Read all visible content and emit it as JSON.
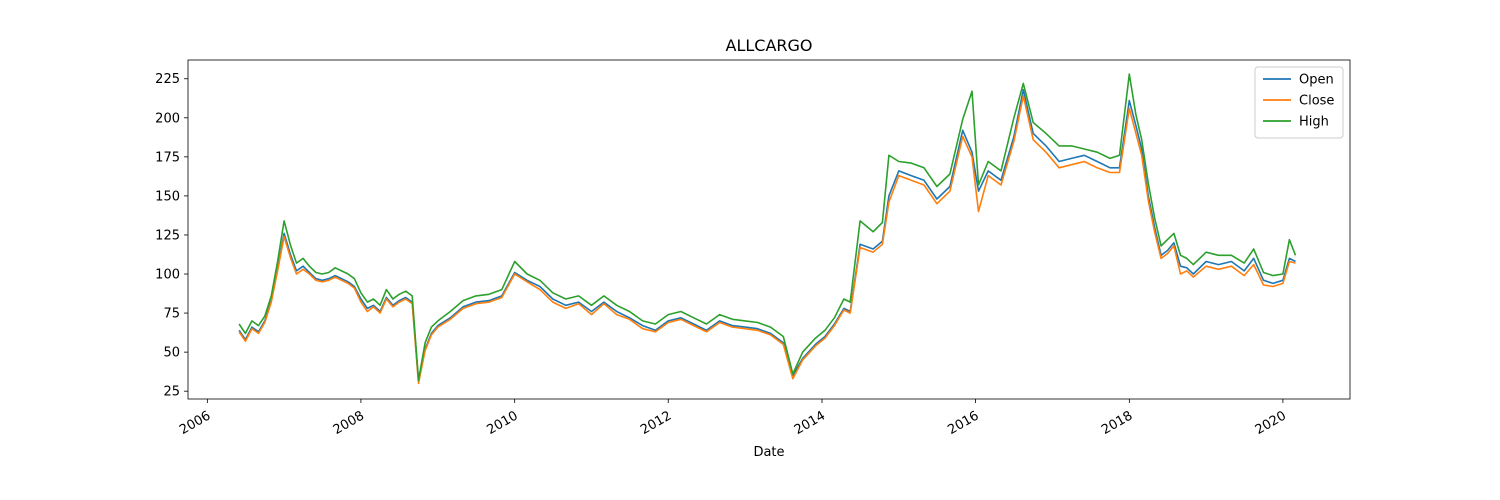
{
  "chart_data": {
    "type": "line",
    "title": "ALLCARGO",
    "xlabel": "Date",
    "ylabel": "",
    "xlim": [
      "2005-10-01",
      "2020-11-15"
    ],
    "ylim": [
      20,
      237
    ],
    "x_ticks": [
      "2006",
      "2008",
      "2010",
      "2012",
      "2014",
      "2016",
      "2018",
      "2020"
    ],
    "y_ticks": [
      25,
      50,
      75,
      100,
      125,
      150,
      175,
      200,
      225
    ],
    "grid": false,
    "legend_position": "top-right",
    "x": [
      "2006-06-01",
      "2006-07-01",
      "2006-08-01",
      "2006-09-01",
      "2006-10-01",
      "2006-11-01",
      "2006-12-01",
      "2007-01-01",
      "2007-02-01",
      "2007-03-01",
      "2007-04-01",
      "2007-05-01",
      "2007-06-01",
      "2007-07-01",
      "2007-08-01",
      "2007-09-01",
      "2007-10-01",
      "2007-11-01",
      "2007-12-01",
      "2008-01-01",
      "2008-02-01",
      "2008-03-01",
      "2008-04-01",
      "2008-05-01",
      "2008-06-01",
      "2008-07-01",
      "2008-08-01",
      "2008-09-01",
      "2008-10-01",
      "2008-11-01",
      "2008-12-01",
      "2009-01-01",
      "2009-03-01",
      "2009-05-01",
      "2009-07-01",
      "2009-09-01",
      "2009-11-01",
      "2010-01-01",
      "2010-03-01",
      "2010-05-01",
      "2010-07-01",
      "2010-09-01",
      "2010-11-01",
      "2011-01-01",
      "2011-03-01",
      "2011-05-01",
      "2011-07-01",
      "2011-09-01",
      "2011-11-01",
      "2012-01-01",
      "2012-03-01",
      "2012-05-01",
      "2012-07-01",
      "2012-09-01",
      "2012-11-01",
      "2013-01-01",
      "2013-03-01",
      "2013-05-01",
      "2013-07-01",
      "2013-08-15",
      "2013-10-01",
      "2013-12-01",
      "2014-01-15",
      "2014-03-01",
      "2014-04-15",
      "2014-05-15",
      "2014-07-01",
      "2014-09-01",
      "2014-10-15",
      "2014-11-15",
      "2015-01-01",
      "2015-03-01",
      "2015-05-01",
      "2015-07-01",
      "2015-09-01",
      "2015-11-01",
      "2015-12-15",
      "2016-01-15",
      "2016-03-01",
      "2016-05-01",
      "2016-07-01",
      "2016-08-15",
      "2016-10-01",
      "2016-12-01",
      "2017-02-01",
      "2017-04-01",
      "2017-06-01",
      "2017-08-01",
      "2017-10-01",
      "2017-11-15",
      "2018-01-01",
      "2018-02-01",
      "2018-03-01",
      "2018-04-01",
      "2018-05-01",
      "2018-06-01",
      "2018-07-01",
      "2018-08-01",
      "2018-09-01",
      "2018-10-01",
      "2018-11-01",
      "2019-01-01",
      "2019-03-01",
      "2019-05-01",
      "2019-07-01",
      "2019-08-15",
      "2019-10-01",
      "2019-11-15",
      "2020-01-01",
      "2020-02-01",
      "2020-03-01"
    ],
    "series": [
      {
        "name": "Open",
        "color": "#1f77b4",
        "values": [
          64,
          58,
          66,
          63,
          70,
          83,
          103,
          126,
          112,
          102,
          105,
          101,
          97,
          96,
          97,
          99,
          97,
          95,
          92,
          84,
          78,
          80,
          76,
          85,
          80,
          83,
          85,
          82,
          32,
          52,
          62,
          67,
          72,
          79,
          82,
          83,
          86,
          101,
          96,
          92,
          84,
          80,
          82,
          76,
          82,
          76,
          72,
          67,
          64,
          70,
          72,
          68,
          64,
          70,
          67,
          66,
          65,
          62,
          56,
          35,
          46,
          55,
          60,
          68,
          78,
          76,
          119,
          116,
          121,
          150,
          166,
          163,
          160,
          148,
          156,
          192,
          178,
          153,
          166,
          160,
          188,
          218,
          190,
          182,
          172,
          174,
          176,
          172,
          168,
          168,
          211,
          195,
          180,
          150,
          130,
          112,
          115,
          120,
          105,
          104,
          100,
          108,
          106,
          108,
          102,
          110,
          96,
          94,
          96,
          110,
          108
        ]
      },
      {
        "name": "Close",
        "color": "#ff7f0e",
        "values": [
          63,
          57,
          65,
          62,
          69,
          82,
          102,
          124,
          110,
          100,
          103,
          100,
          96,
          95,
          96,
          98,
          96,
          94,
          91,
          82,
          76,
          79,
          75,
          84,
          79,
          82,
          84,
          81,
          30,
          51,
          61,
          66,
          71,
          78,
          81,
          82,
          85,
          100,
          95,
          90,
          82,
          78,
          81,
          74,
          81,
          74,
          71,
          65,
          63,
          69,
          71,
          67,
          63,
          69,
          66,
          65,
          64,
          61,
          55,
          33,
          45,
          54,
          59,
          67,
          77,
          75,
          117,
          114,
          119,
          146,
          163,
          160,
          157,
          145,
          153,
          188,
          175,
          140,
          163,
          157,
          185,
          214,
          186,
          178,
          168,
          170,
          172,
          168,
          165,
          165,
          206,
          190,
          176,
          147,
          127,
          110,
          113,
          118,
          100,
          102,
          98,
          105,
          103,
          105,
          99,
          106,
          93,
          92,
          94,
          108,
          107
        ]
      },
      {
        "name": "High",
        "color": "#2ca02c",
        "values": [
          68,
          62,
          70,
          67,
          73,
          86,
          108,
          134,
          118,
          107,
          110,
          105,
          101,
          100,
          101,
          104,
          102,
          100,
          97,
          88,
          82,
          84,
          80,
          90,
          84,
          87,
          89,
          86,
          32,
          56,
          66,
          70,
          76,
          83,
          86,
          87,
          90,
          108,
          100,
          96,
          88,
          84,
          86,
          80,
          86,
          80,
          76,
          70,
          68,
          74,
          76,
          72,
          68,
          74,
          71,
          70,
          69,
          66,
          60,
          36,
          50,
          59,
          64,
          72,
          84,
          82,
          134,
          127,
          133,
          176,
          172,
          171,
          168,
          156,
          164,
          199,
          217,
          157,
          172,
          166,
          200,
          222,
          197,
          190,
          182,
          182,
          180,
          178,
          174,
          176,
          228,
          202,
          186,
          158,
          136,
          118,
          122,
          126,
          112,
          110,
          106,
          114,
          112,
          112,
          107,
          116,
          101,
          99,
          100,
          122,
          112
        ]
      }
    ]
  }
}
